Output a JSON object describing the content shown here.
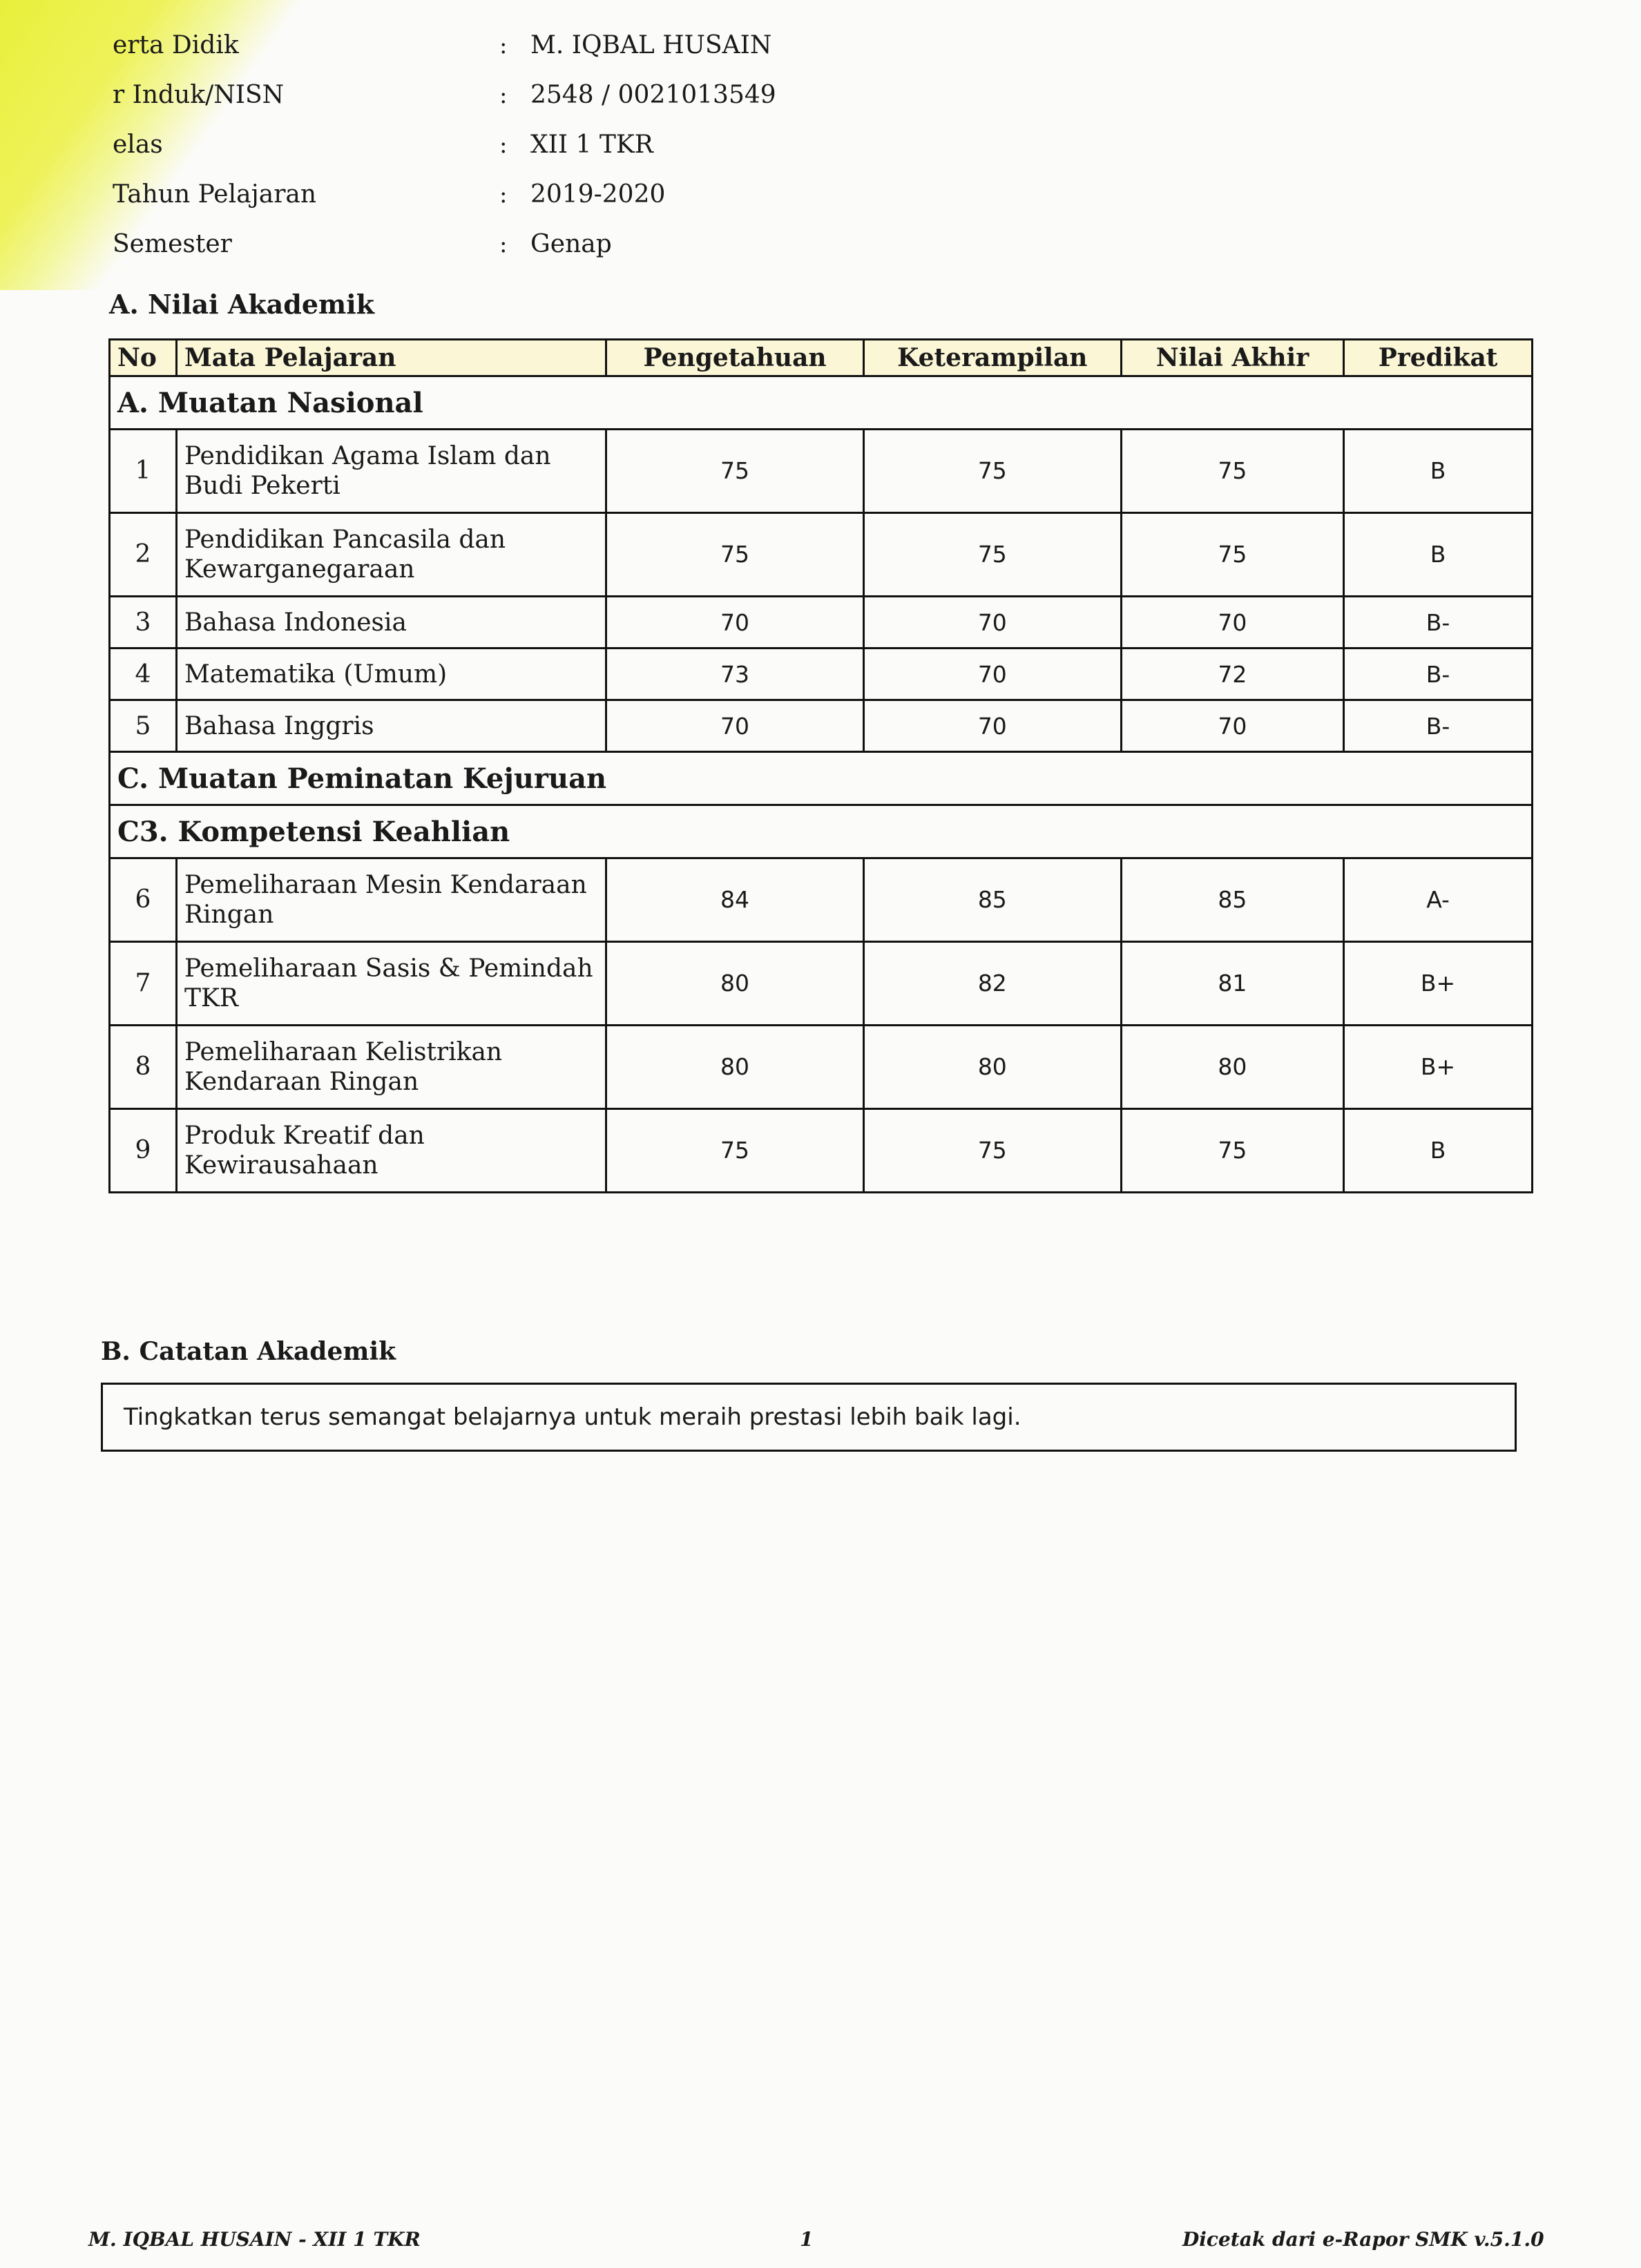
{
  "student_info": [
    {
      "label": "erta Didik",
      "value": "M. IQBAL HUSAIN"
    },
    {
      "label": "r Induk/NISN",
      "value": "2548 / 0021013549"
    },
    {
      "label": "elas",
      "value": "XII 1 TKR"
    },
    {
      "label": "Tahun Pelajaran",
      "value": "2019-2020"
    },
    {
      "label": "Semester",
      "value": "Genap"
    }
  ],
  "colon": ":",
  "section_a_title": "A.  Nilai Akademik",
  "table": {
    "headers": [
      "No",
      "Mata Pelajaran",
      "Pengetahuan",
      "Keterampilan",
      "Nilai Akhir",
      "Predikat"
    ],
    "groups": [
      {
        "title": "A. Muatan Nasional",
        "rows": [
          {
            "no": "1",
            "subject": "Pendidikan Agama Islam dan Budi Pekerti",
            "p": "75",
            "k": "75",
            "na": "75",
            "pred": "B",
            "tall": true
          },
          {
            "no": "2",
            "subject": "Pendidikan Pancasila dan Kewarganegaraan",
            "p": "75",
            "k": "75",
            "na": "75",
            "pred": "B",
            "tall": true
          },
          {
            "no": "3",
            "subject": "Bahasa Indonesia",
            "p": "70",
            "k": "70",
            "na": "70",
            "pred": "B-"
          },
          {
            "no": "4",
            "subject": "Matematika (Umum)",
            "p": "73",
            "k": "70",
            "na": "72",
            "pred": "B-"
          },
          {
            "no": "5",
            "subject": "Bahasa Inggris",
            "p": "70",
            "k": "70",
            "na": "70",
            "pred": "B-"
          }
        ]
      },
      {
        "title": "C. Muatan Peminatan Kejuruan",
        "rows": []
      },
      {
        "title": "C3. Kompetensi Keahlian",
        "rows": [
          {
            "no": "6",
            "subject": "Pemeliharaan Mesin Kendaraan Ringan",
            "p": "84",
            "k": "85",
            "na": "85",
            "pred": "A-",
            "tall": true
          },
          {
            "no": "7",
            "subject": "Pemeliharaan Sasis & Pemindah TKR",
            "p": "80",
            "k": "82",
            "na": "81",
            "pred": "B+",
            "tall": true
          },
          {
            "no": "8",
            "subject": "Pemeliharaan Kelistrikan Kendaraan Ringan",
            "p": "80",
            "k": "80",
            "na": "80",
            "pred": "B+",
            "tall": true
          },
          {
            "no": "9",
            "subject": "Produk Kreatif dan Kewirausahaan",
            "p": "75",
            "k": "75",
            "na": "75",
            "pred": "B",
            "tall": true
          }
        ]
      }
    ]
  },
  "catatan": {
    "title": "B.  Catatan Akademik",
    "text": "Tingkatkan terus semangat belajarnya untuk meraih prestasi lebih baik lagi."
  },
  "footer": {
    "left": "M. IQBAL HUSAIN - XII 1 TKR",
    "page": "1",
    "right": "Dicetak dari e-Rapor SMK v.5.1.0"
  }
}
